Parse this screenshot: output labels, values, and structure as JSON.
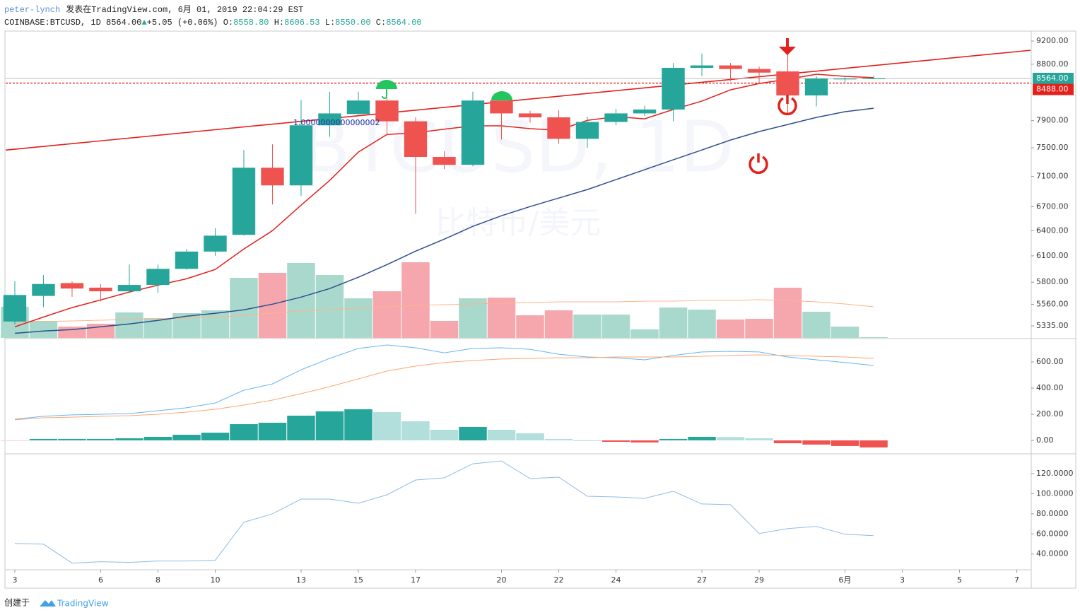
{
  "header": {
    "user": "peter-lynch",
    "published": "发表在TradingView.com, 6月 01, 2019 22:04:29 EST",
    "symbol": "COINBASE:BTCUSD, 1D",
    "price": "8564.00",
    "arrow": "▲",
    "change": "+5.05",
    "change_pct": "(+0.06%)",
    "o_label": "O:",
    "o": "8558.80",
    "h_label": "H:",
    "h": "8606.53",
    "l_label": "L:",
    "l": "8550.00",
    "c_label": "C:",
    "c": "8564.00"
  },
  "watermark": {
    "symbol": "BTCUSD, 1D",
    "name": "比特币/美元"
  },
  "chart_data": [
    {
      "type": "candlestick",
      "log_scale": true,
      "x": [
        0,
        1,
        2,
        3,
        4,
        5,
        6,
        7,
        8,
        9,
        10,
        11,
        12,
        13,
        14,
        15,
        16,
        17,
        18,
        19,
        20,
        21,
        22,
        23,
        24,
        25,
        26,
        27,
        28,
        29,
        30
      ],
      "open": [
        5380,
        5650,
        5790,
        5740,
        5700,
        5770,
        5950,
        6150,
        6350,
        7220,
        6980,
        7830,
        8000,
        8210,
        7890,
        7370,
        7260,
        8210,
        8010,
        7950,
        7630,
        7880,
        8010,
        8070,
        8740,
        8780,
        8720,
        8680,
        8290,
        8550,
        8558.8
      ],
      "high": [
        5810,
        5880,
        5810,
        5780,
        6000,
        6000,
        6180,
        6430,
        7470,
        7550,
        8220,
        8350,
        8350,
        8260,
        7950,
        7450,
        8350,
        8230,
        8050,
        8060,
        7960,
        8080,
        8130,
        8820,
        8980,
        8820,
        8760,
        9070,
        8600,
        8600,
        8606.53
      ],
      "low": [
        5350,
        5530,
        5640,
        5590,
        5680,
        5680,
        5940,
        6100,
        6340,
        6730,
        6840,
        7660,
        7990,
        7680,
        6610,
        7200,
        7240,
        7620,
        7870,
        7560,
        7500,
        7830,
        7970,
        7890,
        8600,
        8520,
        8480,
        8000,
        8120,
        8480,
        8550
      ],
      "close": [
        5660,
        5780,
        5730,
        5700,
        5770,
        5950,
        6150,
        6340,
        7220,
        6980,
        7830,
        8010,
        8210,
        7890,
        7370,
        7260,
        8210,
        8010,
        7950,
        7630,
        7880,
        8010,
        8070,
        8740,
        8780,
        8720,
        8660,
        8290,
        8560,
        8560,
        8564
      ],
      "up_color": "#26a69a",
      "down_color": "#ef5350",
      "xlim": [
        -0.32,
        35.48
      ],
      "xticks": [
        {
          "value": 0,
          "label": "3"
        },
        {
          "value": 3,
          "label": "6"
        },
        {
          "value": 5,
          "label": "8"
        },
        {
          "value": 7,
          "label": "10"
        },
        {
          "value": 10,
          "label": "13"
        },
        {
          "value": 12,
          "label": "15"
        },
        {
          "value": 14,
          "label": "17"
        },
        {
          "value": 17,
          "label": "20"
        },
        {
          "value": 19,
          "label": "22"
        },
        {
          "value": 21,
          "label": "24"
        },
        {
          "value": 24,
          "label": "27"
        },
        {
          "value": 26,
          "label": "29"
        },
        {
          "value": 29,
          "label": "6月"
        },
        {
          "value": 31,
          "label": "3"
        },
        {
          "value": 33,
          "label": "5"
        },
        {
          "value": 35,
          "label": "7"
        }
      ],
      "ylim": [
        5214,
        9363
      ],
      "yticks": [
        {
          "value": 9200,
          "label": "9200.00"
        },
        {
          "value": 8800,
          "label": "8800.00"
        },
        {
          "value": 7900,
          "label": "7900.00"
        },
        {
          "value": 7500,
          "label": "7500.00"
        },
        {
          "value": 7100,
          "label": "7100.00"
        },
        {
          "value": 6700,
          "label": "6700.00"
        },
        {
          "value": 6400,
          "label": "6400.00"
        },
        {
          "value": 6100,
          "label": "6100.00"
        },
        {
          "value": 5800,
          "label": "5800.00"
        },
        {
          "value": 5560,
          "label": "5560.00"
        },
        {
          "value": 5335,
          "label": "5335.00"
        }
      ],
      "overlays": [
        {
          "color": "#e3201b",
          "values": [
            5326,
            5426,
            5525,
            5607,
            5692,
            5767,
            5838,
            5943,
            6180,
            6401,
            6721,
            7047,
            7439,
            7694,
            7718,
            7771,
            7822,
            7822,
            7780,
            7757,
            7905,
            7960,
            7928,
            8070,
            8200,
            8379,
            8482,
            8551,
            8633,
            8598,
            8577
          ]
        },
        {
          "color": "#2f4f8f",
          "values": [
            5260,
            5283,
            5297,
            5326,
            5355,
            5391,
            5435,
            5465,
            5502,
            5561,
            5637,
            5730,
            5855,
            5999,
            6155,
            6298,
            6454,
            6586,
            6703,
            6813,
            6925,
            7057,
            7192,
            7330,
            7469,
            7612,
            7737,
            7842,
            7949,
            8036,
            8090
          ]
        }
      ],
      "trendline": {
        "color": "#e3201b",
        "x": [
          0,
          35
        ],
        "y": [
          7480,
          9015
        ]
      },
      "last_price": {
        "value": 8564,
        "label": "8564.00",
        "color": "#26a69a"
      },
      "price_line": {
        "value": 8488,
        "label": "8488.00",
        "color": "#e3201b"
      },
      "annotation": "1.0000000000000002"
    },
    {
      "type": "bar",
      "ylim": [
        0,
        433
      ],
      "values": [
        44,
        24,
        16,
        20,
        36,
        28,
        35,
        39,
        85,
        92,
        106,
        89,
        56,
        66,
        107,
        24,
        56,
        57,
        32,
        39,
        33,
        33,
        12,
        43,
        40,
        26,
        27,
        71,
        37,
        16,
        1
      ],
      "up_color": "#a8d9cc",
      "down_color": "#f5a7ad",
      "ma": {
        "color": "#ffb48a",
        "values": [
          22,
          23,
          24,
          25,
          26,
          27,
          28,
          29,
          32,
          35,
          38,
          40,
          42,
          44,
          46,
          47,
          48,
          49,
          50,
          51,
          51,
          51,
          52,
          52,
          53,
          53,
          54,
          53,
          51,
          48,
          44
        ]
      }
    },
    {
      "type": "macd",
      "ylim": [
        -92,
        773
      ],
      "yticks": [
        {
          "value": 0,
          "label": "0.00"
        },
        {
          "value": 200,
          "label": "200.00"
        },
        {
          "value": 400,
          "label": "400.00"
        },
        {
          "value": 600,
          "label": "600.00"
        }
      ],
      "histogram": [
        -2,
        11,
        11,
        11,
        16,
        27,
        43,
        59,
        124,
        135,
        189,
        222,
        238,
        216,
        146,
        81,
        103,
        81,
        54,
        11,
        0,
        -11,
        -16,
        11,
        27,
        25,
        16,
        -22,
        -32,
        -43,
        -54
      ],
      "histogram_colors": {
        "up_rising": "#26a69a",
        "up_falling": "#b2dfdb",
        "down_falling": "#ef5350",
        "down_rising": "#ffcdd2"
      },
      "series": [
        {
          "color": "#64b5f6",
          "values": [
            162,
            184,
            195,
            200,
            205,
            227,
            249,
            286,
            384,
            432,
            540,
            627,
            703,
            730,
            708,
            670,
            703,
            708,
            697,
            659,
            638,
            632,
            616,
            649,
            676,
            681,
            676,
            638,
            616,
            595,
            573
          ]
        },
        {
          "color": "#ffa570",
          "values": [
            157,
            173,
            178,
            184,
            189,
            200,
            216,
            238,
            270,
            308,
            357,
            411,
            470,
            530,
            568,
            595,
            611,
            622,
            627,
            632,
            632,
            638,
            638,
            638,
            643,
            649,
            654,
            649,
            643,
            638,
            627
          ]
        }
      ]
    },
    {
      "type": "line",
      "ylim": [
        25,
        139
      ],
      "yticks": [
        {
          "value": 40,
          "label": "40.0000"
        },
        {
          "value": 60,
          "label": "60.0000"
        },
        {
          "value": 80,
          "label": "80.0000"
        },
        {
          "value": 100,
          "label": "100.0000"
        },
        {
          "value": 120,
          "label": "120.0000"
        }
      ],
      "color": "#8fbbe6",
      "values": [
        50.5,
        49.8,
        30.9,
        32.3,
        31.6,
        33.0,
        33.0,
        33.7,
        71.6,
        80.0,
        94.7,
        94.7,
        90.5,
        98.9,
        113.7,
        115.8,
        129.8,
        132.6,
        115.1,
        116.5,
        97.5,
        96.8,
        95.4,
        102.5,
        89.8,
        89.1,
        60.4,
        65.3,
        67.4,
        59.6,
        58.2
      ]
    }
  ],
  "footer": {
    "created": "创建于",
    "brand": "TradingView"
  }
}
